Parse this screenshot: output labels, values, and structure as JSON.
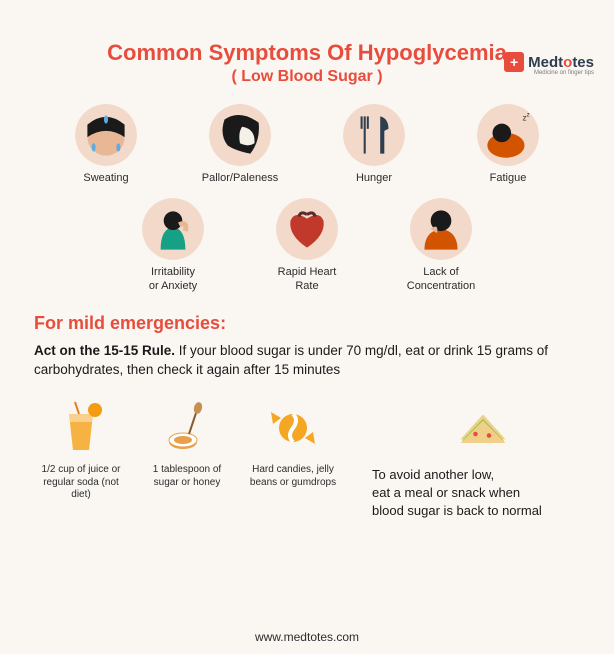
{
  "brand": {
    "logo_symbol": "+",
    "name_pre": "Medt",
    "name_o": "o",
    "name_post": "tes",
    "tagline": "Medicine on finger tips"
  },
  "title": {
    "main": "Common Symptoms Of Hypoglycemia",
    "sub": "( Low Blood Sugar )",
    "color": "#e74c3c"
  },
  "symptoms": {
    "row1": [
      {
        "label": "Sweating",
        "bg": "#f3d9c9"
      },
      {
        "label": "Pallor/Paleness",
        "bg": "#f3d9c9"
      },
      {
        "label": "Hunger",
        "bg": "#f3d9c9"
      },
      {
        "label": "Fatigue",
        "bg": "#f3d9c9"
      }
    ],
    "row2": [
      {
        "label": "Irritability\nor Anxiety",
        "bg": "#f3d9c9"
      },
      {
        "label": "Rapid Heart\nRate",
        "bg": "#f3d9c9"
      },
      {
        "label": "Lack of\nConcentration",
        "bg": "#f3d9c9"
      }
    ]
  },
  "emergencies": {
    "heading": "For mild emergencies:",
    "heading_color": "#e74c3c",
    "rule_bold": "Act on the 15-15 Rule.",
    "rule_rest": " If your blood sugar is under 70 mg/dl, eat or drink 15 grams of carbohydrates, then check it again after 15 minutes"
  },
  "foods": [
    {
      "label": "1/2 cup of juice or regular soda (not diet)"
    },
    {
      "label": "1 tablespoon of sugar or honey"
    },
    {
      "label": "Hard candies, jelly beans or gumdrops"
    }
  ],
  "meal_tip": "To avoid another low,\neat a meal or snack when\nblood sugar is back to normal",
  "footer": "www.medtotes.com",
  "colors": {
    "juice": "#f5a623",
    "honey": "#e8a04a",
    "candy": "#f5a623",
    "sandwich_bread": "#f0d088",
    "sandwich_fill": "#8bc34a",
    "heart": "#c0392b",
    "fork": "#2c3e50",
    "person_dark": "#1a2530",
    "person_shirt": "#d35400",
    "face": "#e8b896",
    "hair": "#1a1a1a",
    "shirt_teal": "#16a085"
  }
}
